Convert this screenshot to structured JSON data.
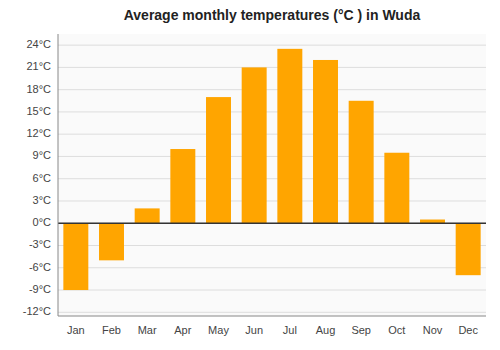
{
  "chart_data": {
    "type": "bar",
    "title": "Average monthly temperatures (°C ) in Wuda",
    "categories": [
      "Jan",
      "Feb",
      "Mar",
      "Apr",
      "May",
      "Jun",
      "Jul",
      "Aug",
      "Sep",
      "Oct",
      "Nov",
      "Dec"
    ],
    "values": [
      -9,
      -5,
      2,
      10,
      17,
      21,
      23.5,
      22,
      16.5,
      9.5,
      0.5,
      -7
    ],
    "color": "#FFA500",
    "ylim": [
      -12.5,
      25.5
    ],
    "yticks": [
      {
        "value": -12,
        "label": "-12°C"
      },
      {
        "value": -9,
        "label": "-9°C"
      },
      {
        "value": -6,
        "label": "-6°C"
      },
      {
        "value": -3,
        "label": "-3°C"
      },
      {
        "value": 0,
        "label": "0°C"
      },
      {
        "value": 3,
        "label": "3°C"
      },
      {
        "value": 6,
        "label": "6°C"
      },
      {
        "value": 9,
        "label": "9°C"
      },
      {
        "value": 12,
        "label": "12°C"
      },
      {
        "value": 15,
        "label": "15°C"
      },
      {
        "value": 18,
        "label": "18°C"
      },
      {
        "value": 21,
        "label": "21°C"
      },
      {
        "value": 24,
        "label": "24°C"
      }
    ],
    "grid": true
  }
}
